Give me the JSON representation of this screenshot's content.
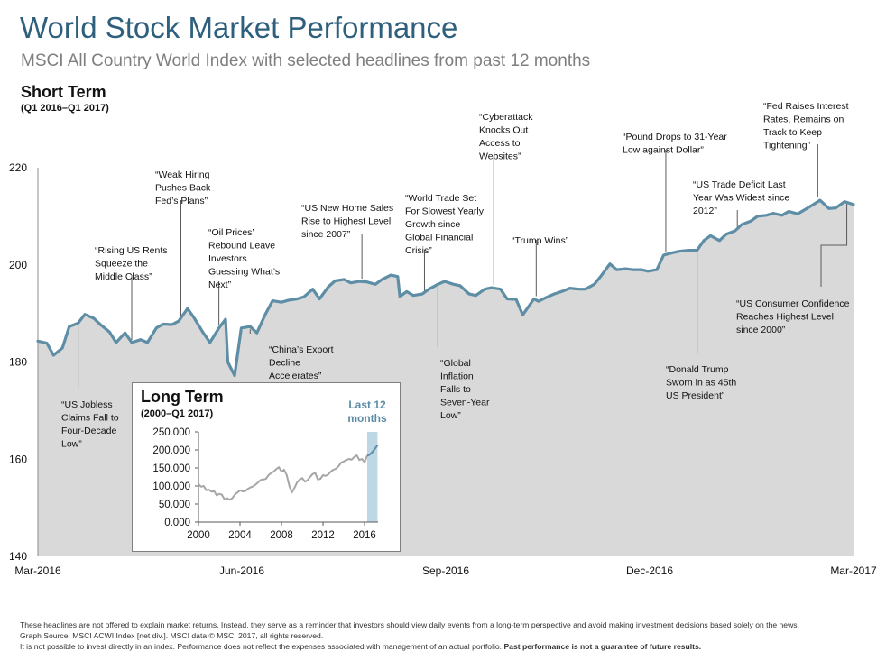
{
  "header": {
    "title": "World Stock Market Performance",
    "subtitle": "MSCI All Country World Index with selected headlines from past 12 months",
    "section_title": "Short Term",
    "section_sub": "(Q1 2016–Q1 2017)"
  },
  "chart_data": [
    {
      "type": "area",
      "title": "Short Term",
      "subtitle": "(Q1 2016–Q1 2017)",
      "x_tick_labels": [
        "Mar-2016",
        "Jun-2016",
        "Sep-2016",
        "Dec-2016",
        "Mar-2017"
      ],
      "y_ticks": [
        140,
        160,
        180,
        200,
        220
      ],
      "ylim": [
        140,
        220
      ],
      "x_range": [
        "2016-03-31",
        "2017-03-31"
      ],
      "colors": {
        "line": "#5e8ea6",
        "area": "#d9d9d9",
        "leader": "#5a5a5a"
      },
      "series": [
        {
          "x": [
            "2016-03-31",
            "2016-04-04",
            "2016-04-07",
            "2016-04-11",
            "2016-04-14",
            "2016-04-18",
            "2016-04-21",
            "2016-04-25",
            "2016-04-28",
            "2016-05-02",
            "2016-05-05",
            "2016-05-09",
            "2016-05-12",
            "2016-05-16",
            "2016-05-19",
            "2016-05-23",
            "2016-05-26",
            "2016-05-30",
            "2016-06-02",
            "2016-06-06",
            "2016-06-09",
            "2016-06-13",
            "2016-06-16",
            "2016-06-20",
            "2016-06-23",
            "2016-06-24",
            "2016-06-27",
            "2016-06-30",
            "2016-07-04",
            "2016-07-07",
            "2016-07-11",
            "2016-07-14",
            "2016-07-18",
            "2016-07-21",
            "2016-07-25",
            "2016-07-28",
            "2016-08-01",
            "2016-08-04",
            "2016-08-08",
            "2016-08-11",
            "2016-08-15",
            "2016-08-18",
            "2016-08-22",
            "2016-08-25",
            "2016-08-29",
            "2016-09-01",
            "2016-09-05",
            "2016-09-08",
            "2016-09-09",
            "2016-09-12",
            "2016-09-15",
            "2016-09-19",
            "2016-09-22",
            "2016-09-26",
            "2016-09-29",
            "2016-10-03",
            "2016-10-06",
            "2016-10-10",
            "2016-10-13",
            "2016-10-17",
            "2016-10-20",
            "2016-10-24",
            "2016-10-27",
            "2016-10-31",
            "2016-11-03",
            "2016-11-08",
            "2016-11-10",
            "2016-11-14",
            "2016-11-17",
            "2016-11-21",
            "2016-11-24",
            "2016-11-28",
            "2016-12-01",
            "2016-12-05",
            "2016-12-08",
            "2016-12-12",
            "2016-12-15",
            "2016-12-19",
            "2016-12-22",
            "2016-12-26",
            "2016-12-29",
            "2017-01-02",
            "2017-01-05",
            "2017-01-09",
            "2017-01-12",
            "2017-01-16",
            "2017-01-20",
            "2017-01-23",
            "2017-01-26",
            "2017-01-30",
            "2017-02-02",
            "2017-02-06",
            "2017-02-09",
            "2017-02-13",
            "2017-02-16",
            "2017-02-20",
            "2017-02-23",
            "2017-02-27",
            "2017-03-02",
            "2017-03-06",
            "2017-03-09",
            "2017-03-13",
            "2017-03-16",
            "2017-03-20",
            "2017-03-23",
            "2017-03-27",
            "2017-03-31"
          ],
          "y": [
            184.3,
            183.9,
            181.4,
            182.9,
            187.3,
            188.0,
            189.8,
            189.0,
            187.7,
            186.2,
            184.0,
            186.0,
            184.0,
            184.6,
            184.0,
            187.0,
            187.8,
            187.7,
            188.4,
            191.0,
            189.0,
            186.0,
            184.0,
            187.0,
            188.8,
            180.0,
            177.2,
            187.0,
            187.3,
            186.0,
            190.0,
            192.6,
            192.3,
            192.7,
            193.0,
            193.4,
            195.0,
            193.0,
            195.5,
            196.7,
            197.0,
            196.3,
            196.6,
            196.5,
            196.0,
            197.0,
            197.9,
            197.6,
            193.5,
            194.5,
            193.7,
            194.0,
            195.0,
            196.0,
            196.6,
            196.0,
            195.7,
            194.0,
            193.7,
            195.0,
            195.3,
            195.0,
            193.0,
            192.9,
            189.7,
            193.0,
            192.5,
            193.4,
            194.0,
            194.6,
            195.2,
            195.0,
            195.0,
            196.0,
            197.7,
            200.2,
            199.0,
            199.2,
            199.0,
            199.0,
            198.7,
            199.0,
            202.0,
            202.5,
            202.8,
            203.0,
            203.0,
            205.0,
            206.0,
            205.0,
            206.3,
            207.0,
            208.3,
            209.0,
            210.0,
            210.2,
            210.6,
            210.2,
            211.0,
            210.5,
            211.3,
            212.4,
            213.3,
            211.6,
            211.7,
            213.0,
            212.4
          ]
        }
      ],
      "annotations": [
        {
          "text": "“US Jobless Claims Fall to Four-Decade Low”",
          "lines": [
            "“US Jobless",
            "Claims Fall to",
            "Four-Decade",
            "Low”"
          ],
          "date": "2016-04-18"
        },
        {
          "text": "“Rising US Rents Squeeze the Middle Class”",
          "lines": [
            "“Rising US Rents",
            "Squeeze the",
            "Middle Class”"
          ],
          "date": "2016-05-12"
        },
        {
          "text": "“Weak Hiring Pushes Back Fed’s Plans”",
          "lines": [
            "“Weak Hiring",
            "Pushes Back",
            "Fed’s Plans”"
          ],
          "date": "2016-06-03"
        },
        {
          "text": "“Oil Prices’ Rebound Leave Investors Guessing What’s Next”",
          "lines": [
            "“Oil Prices’",
            "Rebound Leave",
            "Investors",
            "Guessing What’s",
            "Next”"
          ],
          "date": "2016-06-20"
        },
        {
          "text": "“China’s Export Decline Accelerates”",
          "lines": [
            "“China’s Export",
            "Decline",
            "Accelerates”"
          ],
          "date": "2016-07-04"
        },
        {
          "text": "“US New Home Sales Rise to Highest Level since 2007”",
          "lines": [
            "“US New Home Sales",
            "Rise to Highest Level",
            "since 2007”"
          ],
          "date": "2016-08-23"
        },
        {
          "text": "“World Trade Set For Slowest Yearly Growth since Global Financial Crisis”",
          "lines": [
            "“World Trade Set",
            "For Slowest Yearly",
            "Growth since",
            "Global Financial",
            "Crisis”"
          ],
          "date": "2016-09-20"
        },
        {
          "text": "“Global Inflation Falls to Seven-Year Low”",
          "lines": [
            "“Global",
            "Inflation",
            "Falls to",
            "Seven-Year",
            "Low”"
          ],
          "date": "2016-09-26"
        },
        {
          "text": "“Cyberattack Knocks Out Access to Websites”",
          "lines": [
            "“Cyberattack",
            "Knocks Out",
            "Access to",
            "Websites”"
          ],
          "date": "2016-10-21"
        },
        {
          "text": "“Trump Wins”",
          "lines": [
            "“Trump Wins”"
          ],
          "date": "2016-11-09"
        },
        {
          "text": "“Pound Drops to 31-Year Low against Dollar”",
          "lines": [
            "“Pound Drops to 31-Year",
            "Low against Dollar”"
          ],
          "date": "2017-01-06"
        },
        {
          "text": "“Donald Trump Sworn in as 45th US President”",
          "lines": [
            "“Donald Trump",
            "Sworn in as 45th",
            "US President”"
          ],
          "date": "2017-01-20"
        },
        {
          "text": "“US Trade Deficit Last Year Was Widest since 2012”",
          "lines": [
            "“US Trade Deficit Last",
            "Year Was Widest since",
            "2012”"
          ],
          "date": "2017-02-07"
        },
        {
          "text": "“Fed Raises Interest Rates, Remains on Track to Keep Tightening”",
          "lines": [
            "“Fed Raises Interest",
            "Rates, Remains on",
            "Track to Keep",
            "Tightening”"
          ],
          "date": "2017-03-15"
        },
        {
          "text": "“US Consumer Confidence Reaches Highest Level since 2000”",
          "lines": [
            "“US Consumer Confidence",
            "Reaches Highest Level",
            "since 2000”"
          ],
          "date": "2017-03-28"
        }
      ]
    },
    {
      "type": "line",
      "title": "Long Term",
      "subtitle": "(2000–Q1 2017)",
      "x_ticks": [
        2000,
        2004,
        2008,
        2012,
        2016
      ],
      "y_tick_labels": [
        "0.000",
        "50.000",
        "100.000",
        "150.000",
        "200.000",
        "250.000"
      ],
      "y_ticks": [
        0,
        50,
        100,
        150,
        200,
        250
      ],
      "ylim": [
        0,
        250
      ],
      "xlim": [
        2000,
        2017.3
      ],
      "highlight": {
        "label": "Last 12 months",
        "x_range": [
          2016.25,
          2017.25
        ]
      },
      "colors": {
        "line": "#a6a6a6",
        "recent": "#5e8ea6",
        "highlight": "#bdd7e4",
        "axis": "#595959"
      },
      "series": [
        {
          "x": [
            2000.0,
            2000.25,
            2000.5,
            2000.75,
            2001.0,
            2001.25,
            2001.5,
            2001.75,
            2002.0,
            2002.25,
            2002.5,
            2002.75,
            2003.0,
            2003.25,
            2003.5,
            2003.75,
            2004.0,
            2004.25,
            2004.5,
            2004.75,
            2005.0,
            2005.25,
            2005.5,
            2005.75,
            2006.0,
            2006.25,
            2006.5,
            2006.75,
            2007.0,
            2007.25,
            2007.5,
            2007.75,
            2008.0,
            2008.25,
            2008.5,
            2008.75,
            2009.0,
            2009.25,
            2009.5,
            2009.75,
            2010.0,
            2010.25,
            2010.5,
            2010.75,
            2011.0,
            2011.25,
            2011.5,
            2011.75,
            2012.0,
            2012.25,
            2012.5,
            2012.75,
            2013.0,
            2013.25,
            2013.5,
            2013.75,
            2014.0,
            2014.25,
            2014.5,
            2014.75,
            2015.0,
            2015.25,
            2015.5,
            2015.75,
            2016.0,
            2016.25
          ],
          "y": [
            105,
            98,
            100,
            88,
            90,
            84,
            86,
            74,
            78,
            76,
            63,
            66,
            62,
            66,
            76,
            82,
            88,
            85,
            86,
            92,
            96,
            99,
            104,
            110,
            117,
            118,
            120,
            130,
            136,
            140,
            147,
            152,
            140,
            145,
            130,
            100,
            82,
            95,
            110,
            118,
            122,
            112,
            116,
            125,
            133,
            136,
            118,
            120,
            130,
            128,
            132,
            140,
            145,
            148,
            155,
            165,
            168,
            172,
            175,
            173,
            180,
            185,
            172,
            175,
            166,
            184
          ]
        },
        {
          "name": "Last 12 months",
          "x": [
            2016.25,
            2016.5,
            2016.75,
            2017.0,
            2017.25
          ],
          "y": [
            184,
            187,
            194,
            203,
            213
          ]
        }
      ]
    }
  ],
  "inset": {
    "title": "Long Term",
    "subtitle": "(2000–Q1 2017)",
    "highlight_label": "Last 12 months"
  },
  "footer": {
    "line1": "These headlines are not offered to explain market returns. Instead, they serve as a reminder that investors should view daily events from a long-term perspective and avoid making investment decisions based solely on the news.",
    "line2": "Graph Source: MSCI ACWI Index [net div.]. MSCI data © MSCI 2017, all rights reserved.",
    "line3_normal": "It is not possible to invest directly in an index. Performance does not reflect the expenses associated with management of an actual portfolio. ",
    "line3_bold": "Past performance is not a guarantee of future results."
  }
}
